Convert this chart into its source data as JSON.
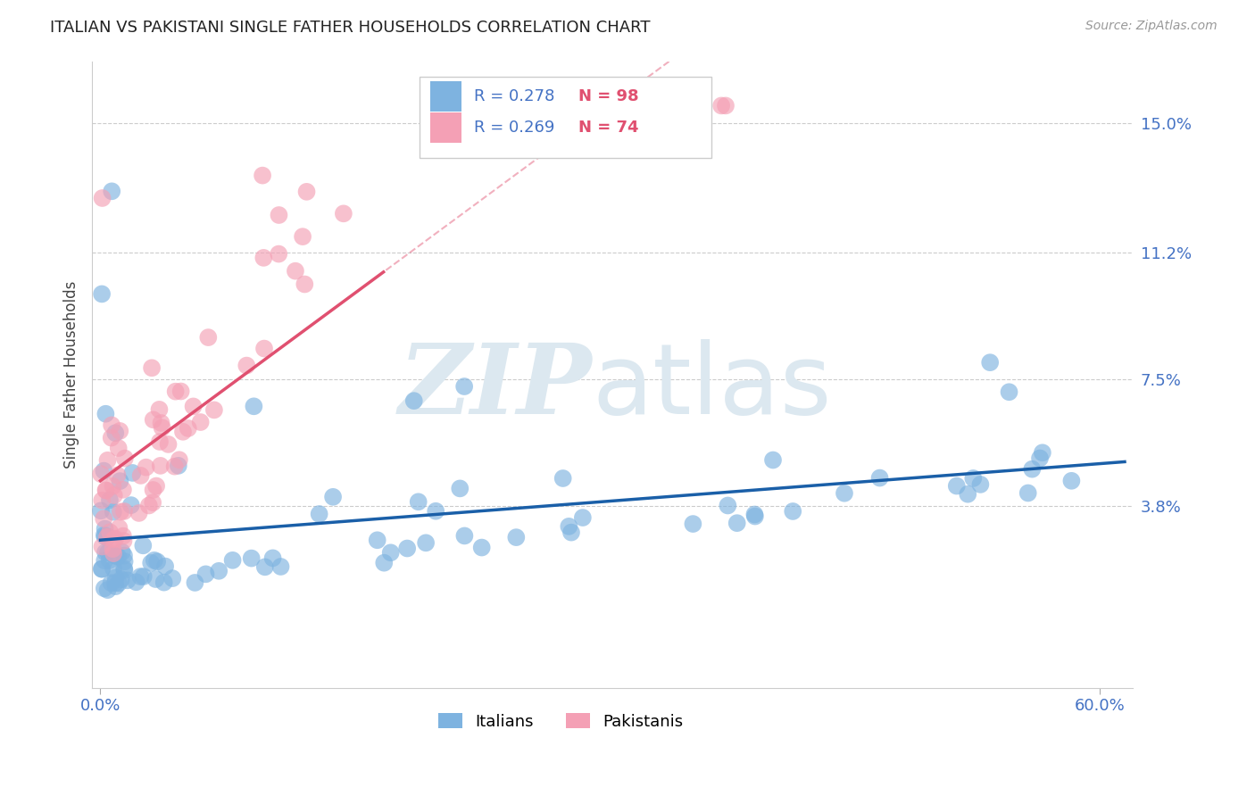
{
  "title": "ITALIAN VS PAKISTANI SINGLE FATHER HOUSEHOLDS CORRELATION CHART",
  "source": "Source: ZipAtlas.com",
  "ylabel": "Single Father Households",
  "xlim": [
    0.0,
    0.62
  ],
  "ylim": [
    -0.015,
    0.168
  ],
  "ytick_vals": [
    0.038,
    0.075,
    0.112,
    0.15
  ],
  "ytick_labels": [
    "3.8%",
    "7.5%",
    "11.2%",
    "15.0%"
  ],
  "xtick_vals": [
    0.0,
    0.6
  ],
  "xtick_labels": [
    "0.0%",
    "60.0%"
  ],
  "italian_color": "#7eb3e0",
  "pakistani_color": "#f4a0b5",
  "italian_line_color": "#1a5fa8",
  "pakistani_line_color": "#e05070",
  "legend_R_italian": "R = 0.278",
  "legend_N_italian": "N = 98",
  "legend_R_pakistani": "R = 0.269",
  "legend_N_pakistani": "N = 74",
  "watermark_zip": "ZIP",
  "watermark_atlas": "atlas",
  "watermark_color": "#dce8f0",
  "background_color": "#ffffff",
  "N_italian": 98,
  "N_pakistani": 74,
  "R_italian": 0.278,
  "R_pakistani": 0.269
}
